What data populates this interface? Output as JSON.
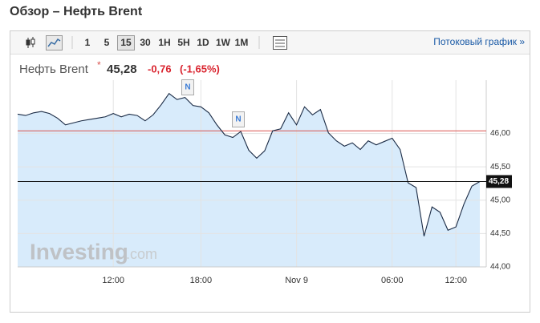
{
  "page_title": "Обзор – Нефть Brent",
  "toolbar": {
    "buttons": [
      "1",
      "5",
      "15",
      "30",
      "1H",
      "5H",
      "1D",
      "1W",
      "1M"
    ],
    "selected_index": 2,
    "link": "Потоковый график »"
  },
  "chart_data": {
    "type": "line",
    "title": "Нефть Brent",
    "price": "45,28",
    "change": "-0,76",
    "change_pct": "(-1,65%)",
    "categories": [
      null,
      null,
      null,
      null,
      null,
      null,
      null,
      null,
      null,
      null,
      null,
      null,
      "12:00",
      null,
      null,
      null,
      null,
      null,
      null,
      null,
      null,
      null,
      null,
      "18:00",
      null,
      null,
      null,
      null,
      null,
      null,
      null,
      null,
      null,
      null,
      null,
      "Nov 9",
      null,
      null,
      null,
      null,
      null,
      null,
      null,
      null,
      null,
      null,
      null,
      "06:00",
      null,
      null,
      null,
      null,
      null,
      null,
      null,
      "12:00",
      null,
      null,
      null
    ],
    "series": [
      {
        "name": "Нефть Brent",
        "color": "#1a2a44",
        "values": [
          46.29,
          46.27,
          46.31,
          46.33,
          46.3,
          46.23,
          46.13,
          46.16,
          46.19,
          46.21,
          46.23,
          46.25,
          46.3,
          46.25,
          46.29,
          46.27,
          46.19,
          46.28,
          46.43,
          46.6,
          46.51,
          46.54,
          46.42,
          46.4,
          46.31,
          46.13,
          45.98,
          45.94,
          46.03,
          45.75,
          45.63,
          45.74,
          46.04,
          46.07,
          46.31,
          46.13,
          46.4,
          46.28,
          46.36,
          46.01,
          45.89,
          45.81,
          45.86,
          45.76,
          45.89,
          45.83,
          45.88,
          45.93,
          45.76,
          45.26,
          45.19,
          44.46,
          44.9,
          44.82,
          44.55,
          44.6,
          44.94,
          45.21,
          45.28
        ]
      }
    ],
    "area_color": "#d8ebfb",
    "ylim": [
      44,
      46.8
    ],
    "yticks": [
      {
        "value": 44,
        "label": "44,00"
      },
      {
        "value": 44.5,
        "label": "44,50"
      },
      {
        "value": 45,
        "label": "45,00"
      },
      {
        "value": 45.5,
        "label": "45,50"
      },
      {
        "value": 46,
        "label": "46,00"
      }
    ],
    "grid": true,
    "previous_close": {
      "value": 46.04,
      "color": "#d9534f"
    },
    "last_price": {
      "value": 45.28,
      "label": "45,28"
    },
    "annotations": [
      "N",
      "N"
    ],
    "watermark": [
      "Investing",
      ".com"
    ]
  }
}
